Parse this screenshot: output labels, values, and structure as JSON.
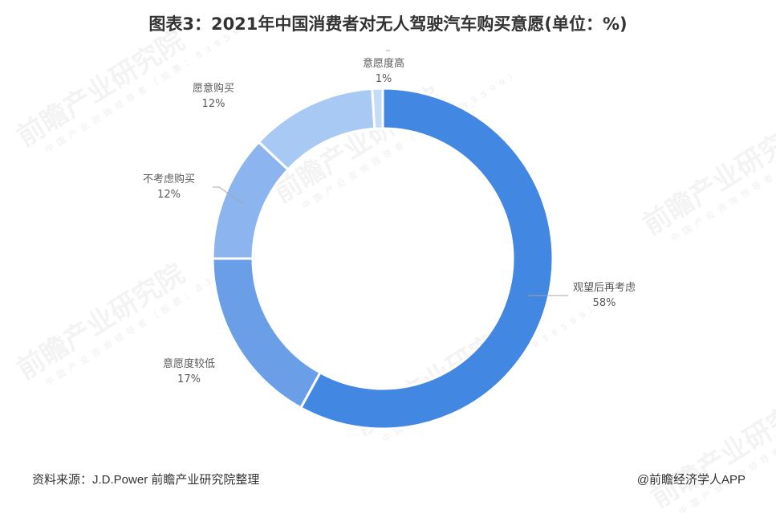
{
  "title": "图表3：2021年中国消费者对无人驾驶汽车购买意愿(单位：%)",
  "footer": {
    "source": "资料来源：J.D.Power 前瞻产业研究院整理",
    "credit": "@前瞻经济学人APP"
  },
  "watermark": {
    "main": "前瞻产业研究院",
    "sub": "中国产业咨询领导者（股票：839599）"
  },
  "labels": [
    {
      "name": "观望后再考虑",
      "pct": "58%"
    },
    {
      "name": "意愿度较低",
      "pct": "17%"
    },
    {
      "name": "不考虑购买",
      "pct": "12%"
    },
    {
      "name": "愿意购买",
      "pct": "12%"
    },
    {
      "name": "意愿度高",
      "pct": "1%"
    }
  ],
  "chart_data": {
    "type": "pie",
    "subtype": "donut",
    "title": "图表3：2021年中国消费者对无人驾驶汽车购买意愿(单位：%)",
    "categories": [
      "观望后再考虑",
      "意愿度较低",
      "不考虑购买",
      "愿意购买",
      "意愿度高"
    ],
    "values": [
      58,
      17,
      12,
      12,
      1
    ],
    "unit": "%",
    "colors": [
      "#4287E2",
      "#6A9FE8",
      "#8CB4EF",
      "#A9C9F5",
      "#C5DBF8"
    ],
    "start_angle": "top, clockwise",
    "legend": "none (data labels with leader lines)",
    "source": "J.D.Power 前瞻产业研究院整理"
  }
}
